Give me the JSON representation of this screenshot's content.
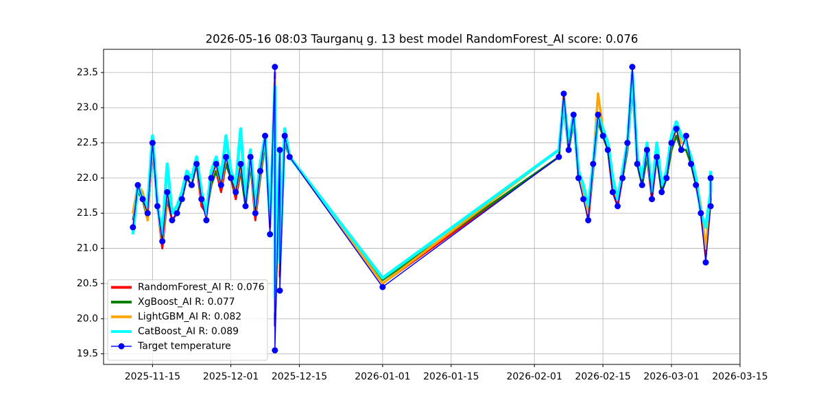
{
  "chart_data": {
    "type": "line",
    "title": "2026-05-16 08:03 Taurganų g. 13 best model RandomForest_AI score: 0.076",
    "x": [
      "2025-11-11",
      "2025-11-12",
      "2025-11-13",
      "2025-11-14",
      "2025-11-15",
      "2025-11-16",
      "2025-11-17",
      "2025-11-18",
      "2025-11-19",
      "2025-11-20",
      "2025-11-21",
      "2025-11-22",
      "2025-11-23",
      "2025-11-24",
      "2025-11-25",
      "2025-11-26",
      "2025-11-27",
      "2025-11-28",
      "2025-11-29",
      "2025-11-30",
      "2025-12-01",
      "2025-12-02",
      "2025-12-03",
      "2025-12-04",
      "2025-12-05",
      "2025-12-06",
      "2025-12-07",
      "2025-12-08",
      "2025-12-09",
      "2025-12-10",
      "2025-12-10",
      "2025-12-11",
      "2025-12-11",
      "2025-12-12",
      "2025-12-13",
      "2026-01-01",
      "2026-02-06",
      "2026-02-07",
      "2026-02-08",
      "2026-02-09",
      "2026-02-10",
      "2026-02-11",
      "2026-02-12",
      "2026-02-13",
      "2026-02-14",
      "2026-02-15",
      "2026-02-16",
      "2026-02-17",
      "2026-02-18",
      "2026-02-19",
      "2026-02-20",
      "2026-02-21",
      "2026-02-22",
      "2026-02-23",
      "2026-02-24",
      "2026-02-25",
      "2026-02-26",
      "2026-02-27",
      "2026-02-28",
      "2026-03-01",
      "2026-03-02",
      "2026-03-03",
      "2026-03-04",
      "2026-03-05",
      "2026-03-06",
      "2026-03-07",
      "2026-03-08",
      "2026-03-09",
      "2026-03-09"
    ],
    "series": [
      {
        "name": "RandomForest_AI R: 0.076",
        "color": "#ff0000",
        "values": [
          21.4,
          21.8,
          21.7,
          21.4,
          22.4,
          21.6,
          21.0,
          21.7,
          21.4,
          21.5,
          21.7,
          22.0,
          21.9,
          22.2,
          21.6,
          21.5,
          21.9,
          22.1,
          21.8,
          22.2,
          22.0,
          21.7,
          22.1,
          21.6,
          22.2,
          21.4,
          22.0,
          22.5,
          21.3,
          23.5,
          19.9,
          22.3,
          20.6,
          22.6,
          22.3,
          20.5,
          22.3,
          23.1,
          22.4,
          22.9,
          22.0,
          21.8,
          21.4,
          22.1,
          22.8,
          22.6,
          22.4,
          21.8,
          21.6,
          22.0,
          22.4,
          23.4,
          22.2,
          21.9,
          22.3,
          21.7,
          22.3,
          21.8,
          22.0,
          22.4,
          22.6,
          22.4,
          22.4,
          22.2,
          21.9,
          21.5,
          20.9,
          21.7,
          22.0
        ]
      },
      {
        "name": "XgBoost_AI R: 0.077",
        "color": "#008000",
        "values": [
          21.5,
          21.8,
          21.7,
          21.4,
          22.4,
          21.6,
          21.1,
          21.7,
          21.5,
          21.5,
          21.7,
          22.0,
          21.9,
          22.2,
          21.7,
          21.5,
          21.9,
          22.1,
          21.9,
          22.2,
          22.0,
          21.8,
          22.1,
          21.6,
          22.2,
          21.5,
          22.0,
          22.5,
          21.4,
          23.4,
          20.0,
          22.3,
          20.7,
          22.5,
          22.3,
          20.55,
          22.3,
          23.0,
          22.4,
          22.8,
          22.0,
          21.8,
          21.5,
          22.1,
          22.8,
          22.6,
          22.4,
          21.9,
          21.7,
          22.0,
          22.4,
          23.3,
          22.2,
          21.9,
          22.3,
          21.8,
          22.3,
          21.8,
          22.0,
          22.4,
          22.6,
          22.4,
          22.4,
          22.2,
          21.9,
          21.6,
          21.0,
          21.7,
          22.1
        ]
      },
      {
        "name": "LightGBM_AI R: 0.082",
        "color": "#ffa500",
        "values": [
          21.5,
          21.9,
          21.8,
          21.4,
          22.5,
          21.6,
          21.1,
          21.8,
          21.5,
          21.6,
          21.8,
          22.0,
          22.0,
          22.3,
          21.7,
          21.5,
          22.0,
          22.2,
          21.9,
          22.3,
          22.1,
          21.8,
          22.2,
          21.7,
          22.3,
          21.5,
          22.1,
          22.6,
          21.4,
          23.4,
          20.1,
          22.4,
          20.7,
          22.7,
          22.3,
          20.5,
          22.4,
          23.2,
          22.5,
          22.9,
          22.1,
          21.8,
          21.5,
          22.2,
          23.2,
          22.7,
          22.5,
          21.9,
          21.7,
          22.1,
          22.5,
          23.4,
          22.3,
          22.0,
          22.4,
          21.8,
          22.4,
          21.9,
          22.1,
          22.5,
          22.7,
          22.5,
          22.5,
          22.3,
          22.0,
          21.6,
          21.0,
          21.8,
          22.1
        ]
      },
      {
        "name": "CatBoost_AI R: 0.089",
        "color": "#00ffff",
        "values": [
          21.2,
          21.9,
          21.7,
          21.6,
          22.6,
          21.6,
          21.2,
          22.2,
          21.5,
          21.6,
          21.8,
          22.1,
          22.0,
          22.3,
          21.8,
          21.5,
          22.1,
          22.3,
          22.0,
          22.6,
          22.1,
          21.9,
          22.7,
          21.7,
          22.4,
          21.6,
          22.2,
          22.6,
          21.4,
          23.3,
          20.3,
          22.4,
          20.8,
          22.7,
          22.3,
          20.58,
          22.4,
          23.1,
          22.5,
          22.9,
          22.1,
          21.9,
          21.6,
          22.2,
          22.9,
          22.7,
          22.5,
          22.0,
          21.7,
          22.1,
          22.5,
          23.5,
          22.3,
          22.0,
          22.5,
          21.8,
          22.5,
          21.9,
          22.1,
          22.6,
          22.8,
          22.6,
          22.5,
          22.3,
          22.0,
          21.5,
          21.3,
          21.8,
          22.1
        ]
      },
      {
        "name": "Target temperature",
        "color": "#0000ff",
        "marker": true,
        "values": [
          21.3,
          21.9,
          21.7,
          21.5,
          22.5,
          21.6,
          21.1,
          21.8,
          21.4,
          21.5,
          21.7,
          22.0,
          21.9,
          22.2,
          21.7,
          21.4,
          22.0,
          22.2,
          21.9,
          22.3,
          22.0,
          21.8,
          22.2,
          21.6,
          22.3,
          21.5,
          22.1,
          22.6,
          21.2,
          23.58,
          19.55,
          22.4,
          20.4,
          22.6,
          22.3,
          20.45,
          22.3,
          23.2,
          22.4,
          22.9,
          22.0,
          21.7,
          21.4,
          22.2,
          22.9,
          22.6,
          22.4,
          21.8,
          21.6,
          22.0,
          22.5,
          23.58,
          22.2,
          21.9,
          22.4,
          21.7,
          22.3,
          21.8,
          22.0,
          22.5,
          22.7,
          22.4,
          22.6,
          22.2,
          21.9,
          21.5,
          20.8,
          21.6,
          22.0
        ]
      }
    ],
    "xlim": [
      "2025-11-05",
      "2026-03-15"
    ],
    "xticks": [
      "2025-11-15",
      "2025-12-01",
      "2025-12-15",
      "2026-01-01",
      "2026-01-15",
      "2026-02-01",
      "2026-02-15",
      "2026-03-01",
      "2026-03-15"
    ],
    "ylim": [
      19.35,
      23.83
    ],
    "yticks": [
      19.5,
      {
        "value": 20,
        "label": "20.0"
      },
      20.5,
      {
        "value": 21,
        "label": "21.0"
      },
      21.5,
      {
        "value": 22,
        "label": "22.0"
      },
      22.5,
      {
        "value": 23,
        "label": "23.0"
      },
      23.5
    ],
    "grid": true,
    "legend": "lower left"
  }
}
